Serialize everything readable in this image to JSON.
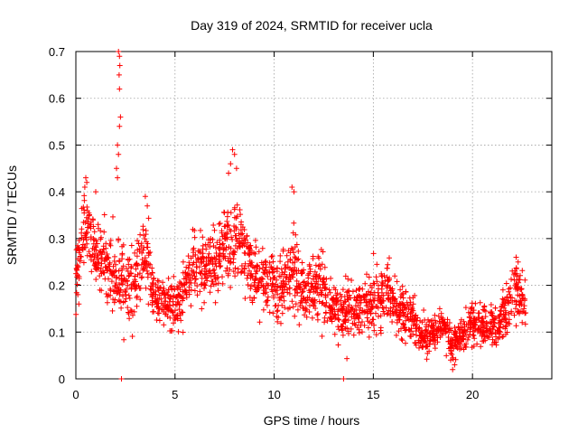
{
  "chart_data": {
    "type": "scatter",
    "title": "Day 319 of 2024, SRMTID for receiver ucla",
    "xlabel": "GPS time / hours",
    "ylabel": "SRMTID / TECUs",
    "xlim": [
      0,
      24
    ],
    "ylim": [
      0,
      0.7
    ],
    "xticks": [
      0,
      5,
      10,
      15,
      20
    ],
    "yticks": [
      0,
      0.1,
      0.2,
      0.3,
      0.4,
      0.5,
      0.6,
      0.7
    ],
    "xtick_labels": [
      "0",
      "5",
      "10",
      "15",
      "20"
    ],
    "ytick_labels": [
      "0",
      "0.1",
      "0.2",
      "0.3",
      "0.4",
      "0.5",
      "0.6",
      "0.7"
    ],
    "grid": true,
    "marker": "+",
    "marker_color": "#ff0000",
    "series": [
      {
        "name": "SRMTID",
        "trend": {
          "x": [
            0,
            0.3,
            0.5,
            0.8,
            1.0,
            1.5,
            2.0,
            2.3,
            2.6,
            3.0,
            3.5,
            4.0,
            4.5,
            5.0,
            5.5,
            6.0,
            6.5,
            7.0,
            7.5,
            8.0,
            8.5,
            9.0,
            9.5,
            10.0,
            10.5,
            11.0,
            11.5,
            12.0,
            12.5,
            13.0,
            13.5,
            14.0,
            14.5,
            15.0,
            15.5,
            16.0,
            16.5,
            17.0,
            17.5,
            18.0,
            18.5,
            19.0,
            19.5,
            20.0,
            20.5,
            21.0,
            21.5,
            22.0,
            22.3,
            22.7
          ],
          "y": [
            0.22,
            0.3,
            0.33,
            0.3,
            0.27,
            0.25,
            0.21,
            0.23,
            0.2,
            0.22,
            0.26,
            0.17,
            0.16,
            0.15,
            0.2,
            0.24,
            0.22,
            0.24,
            0.29,
            0.3,
            0.27,
            0.22,
            0.21,
            0.2,
            0.2,
            0.24,
            0.18,
            0.19,
            0.19,
            0.15,
            0.15,
            0.14,
            0.15,
            0.16,
            0.19,
            0.17,
            0.15,
            0.13,
            0.09,
            0.1,
            0.11,
            0.08,
            0.09,
            0.12,
            0.11,
            0.11,
            0.13,
            0.18,
            0.19,
            0.14
          ],
          "spread": [
            0.05,
            0.07,
            0.07,
            0.06,
            0.06,
            0.06,
            0.06,
            0.08,
            0.06,
            0.07,
            0.07,
            0.05,
            0.05,
            0.05,
            0.06,
            0.06,
            0.06,
            0.07,
            0.08,
            0.09,
            0.07,
            0.06,
            0.06,
            0.06,
            0.07,
            0.08,
            0.06,
            0.06,
            0.06,
            0.05,
            0.05,
            0.05,
            0.05,
            0.06,
            0.06,
            0.05,
            0.05,
            0.04,
            0.03,
            0.03,
            0.03,
            0.03,
            0.03,
            0.04,
            0.04,
            0.04,
            0.05,
            0.05,
            0.05,
            0.04
          ]
        },
        "points": [
          [
            2.15,
            0.7
          ],
          [
            2.2,
            0.69
          ],
          [
            2.22,
            0.67
          ],
          [
            2.18,
            0.65
          ],
          [
            2.2,
            0.62
          ],
          [
            2.25,
            0.56
          ],
          [
            2.2,
            0.54
          ],
          [
            2.1,
            0.5
          ],
          [
            2.15,
            0.48
          ],
          [
            2.05,
            0.45
          ],
          [
            2.1,
            0.43
          ],
          [
            2.3,
            0.0
          ],
          [
            13.5,
            0.0
          ],
          [
            0.5,
            0.43
          ],
          [
            0.55,
            0.42
          ],
          [
            0.45,
            0.41
          ],
          [
            1.0,
            0.4
          ],
          [
            7.9,
            0.49
          ],
          [
            8.0,
            0.48
          ],
          [
            7.8,
            0.46
          ],
          [
            8.1,
            0.45
          ],
          [
            7.7,
            0.44
          ],
          [
            10.9,
            0.41
          ],
          [
            11.0,
            0.4
          ],
          [
            3.5,
            0.39
          ],
          [
            3.6,
            0.37
          ],
          [
            19.0,
            0.02
          ],
          [
            19.1,
            0.03
          ],
          [
            18.9,
            0.04
          ],
          [
            22.2,
            0.26
          ],
          [
            22.3,
            0.25
          ],
          [
            0.1,
            0.18
          ],
          [
            0.15,
            0.16
          ]
        ]
      }
    ]
  }
}
